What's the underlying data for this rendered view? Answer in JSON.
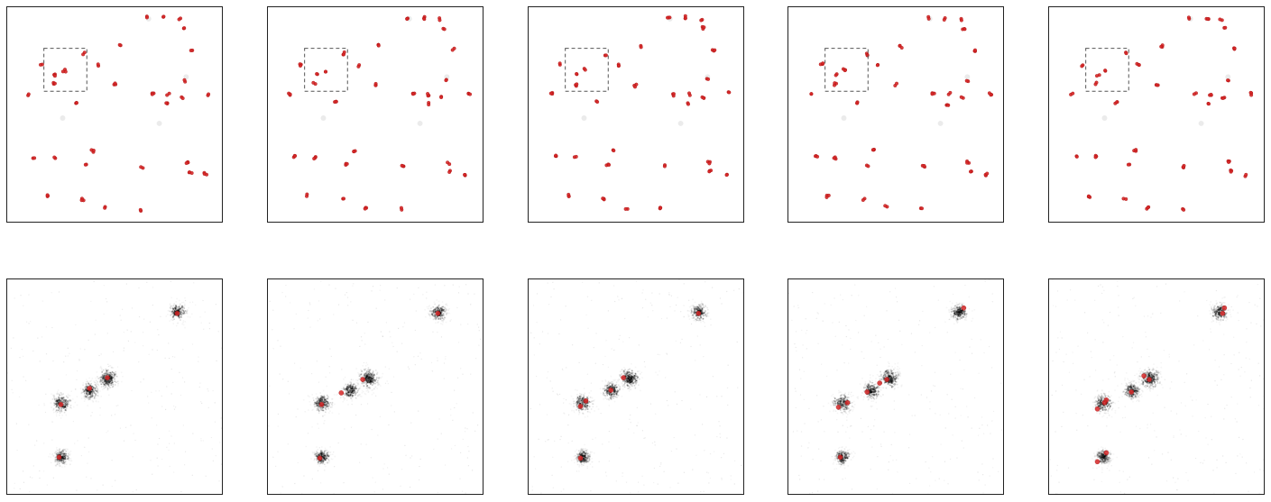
{
  "figure": {
    "rows": [
      {
        "name": "overview",
        "panel_count": 5
      },
      {
        "name": "zoom",
        "panel_count": 5
      }
    ]
  },
  "style": {
    "localization_color": "#d62728",
    "marker_edge_color": "#b01010",
    "blob_color": "#000000",
    "inset_box_color": "#555555",
    "panel_border_color": "#222222",
    "background_color": "#ffffff"
  },
  "icons": {
    "localization": "red-dot",
    "inset": "dashed-rectangle"
  }
}
